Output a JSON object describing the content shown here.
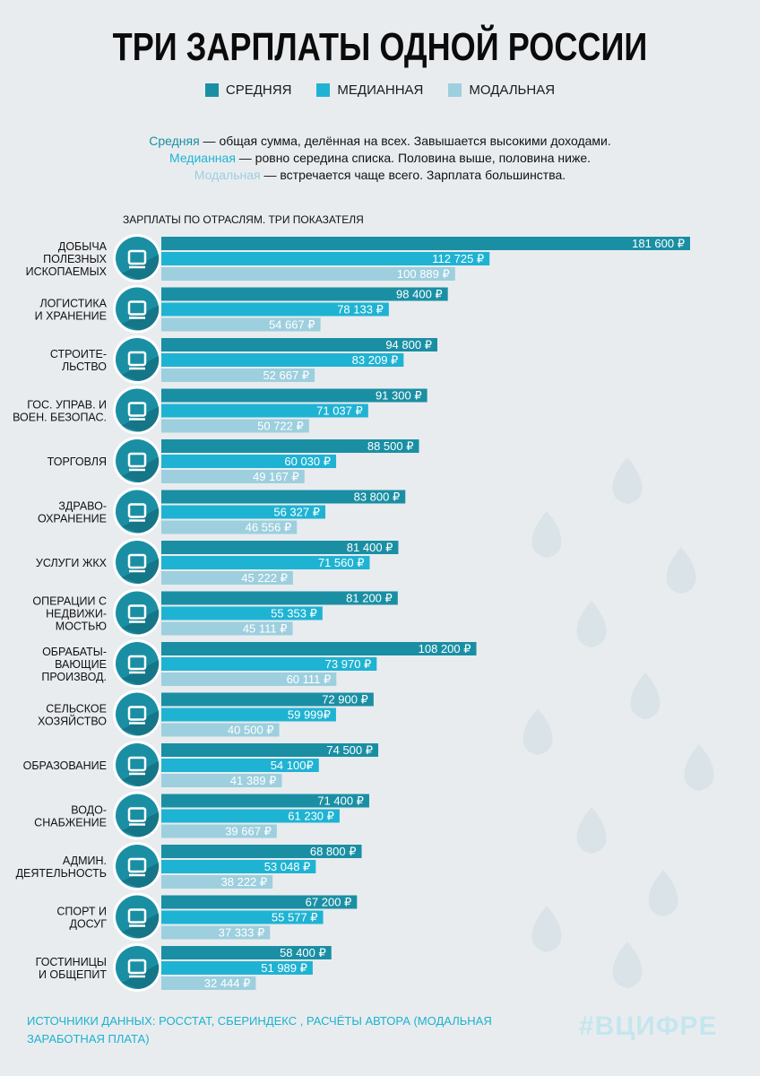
{
  "title": "ТРИ ЗАРПЛАТЫ ОДНОЙ РОССИИ",
  "legend": [
    {
      "label": "СРЕДНЯЯ",
      "color": "#1a8fa4"
    },
    {
      "label": "МЕДИАННАЯ",
      "color": "#1fb3d3"
    },
    {
      "label": "МОДАЛЬНАЯ",
      "color": "#9dcfde"
    }
  ],
  "definitions": [
    {
      "term": "Средняя",
      "text": " — общая сумма, делённая на всех. Завышается высокими доходами.",
      "color": "#1a8fa4"
    },
    {
      "term": "Медианная",
      "text": " — ровно середина списка. Половина выше, половина ниже.",
      "color": "#1fb3d3"
    },
    {
      "term": "Модальная",
      "text": " — встречается чаще всего. Зарплата большинства.",
      "color": "#9dcfde"
    }
  ],
  "subtitle": "ЗАРПЛАТЫ ПО ОТРАСЛЯМ. ТРИ ПОКАЗАТЕЛЯ",
  "source": "ИСТОЧНИКИ ДАННЫХ: РОССТАТ, СБЕРИНДЕКС , РАСЧЁТЫ АВТОРА (МОДАЛЬНАЯ ЗАРАБОТНАЯ ПЛАТА)",
  "brand": "#ВЦИФРЕ",
  "chart_data": {
    "type": "bar",
    "orientation": "horizontal",
    "series": [
      {
        "name": "СРЕДНЯЯ",
        "color": "#1a8fa4",
        "values": [
          181600,
          98400,
          94800,
          91300,
          88500,
          83800,
          81400,
          81200,
          108200,
          72900,
          74500,
          71400,
          68800,
          67200,
          58400
        ],
        "labels": [
          "181 600 ₽",
          "98 400 ₽",
          "94 800 ₽",
          "91 300 ₽",
          "88 500 ₽",
          "83 800 ₽",
          "81 400 ₽",
          "81 200 ₽",
          "108 200 ₽",
          "72 900 ₽",
          "74 500 ₽",
          "71 400 ₽",
          "68 800 ₽",
          "67 200 ₽",
          "58 400 ₽"
        ]
      },
      {
        "name": "МЕДИАННАЯ",
        "color": "#1fb3d3",
        "values": [
          112725,
          78133,
          83209,
          71037,
          60030,
          56327,
          71560,
          55353,
          73970,
          59999,
          54100,
          61230,
          53048,
          55577,
          51989
        ],
        "labels": [
          "112 725 ₽",
          "78 133 ₽",
          "83 209 ₽",
          "71 037 ₽",
          "60 030 ₽",
          "56 327 ₽",
          "71 560 ₽",
          "55 353 ₽",
          "73 970 ₽",
          "59 999₽",
          "54 100₽",
          "61 230 ₽",
          "53 048 ₽",
          "55 577 ₽",
          "51 989 ₽"
        ]
      },
      {
        "name": "МОДАЛЬНАЯ",
        "color": "#9dcfde",
        "values": [
          100889,
          54667,
          52667,
          50722,
          49167,
          46556,
          45222,
          45111,
          60111,
          40500,
          41389,
          39667,
          38222,
          37333,
          32444
        ],
        "labels": [
          "100 889 ₽",
          "54 667 ₽",
          "52 667 ₽",
          "50 722 ₽",
          "49 167 ₽",
          "46 556 ₽",
          "45 222 ₽",
          "45 111 ₽",
          "60 111 ₽",
          "40 500 ₽",
          "41 389 ₽",
          "39 667 ₽",
          "38 222 ₽",
          "37 333 ₽",
          "32 444 ₽"
        ]
      }
    ],
    "categories": [
      {
        "lines": [
          "ДОБЫЧА",
          "ПОЛЕЗНЫХ",
          "ИСКОПАЕМЫХ"
        ],
        "icon": "pickaxe-shovel-icon"
      },
      {
        "lines": [
          "ЛОГИСТИКА",
          "И ХРАНЕНИЕ"
        ],
        "icon": "truck-icon"
      },
      {
        "lines": [
          "СТРОИТЕ-",
          "ЛЬСТВО"
        ],
        "icon": "crane-icon"
      },
      {
        "lines": [
          "ГОС. УПРАВ. И",
          "ВОЕН. БЕЗОПАС."
        ],
        "icon": "kremlin-tower-icon"
      },
      {
        "lines": [
          "ТОРГОВЛЯ"
        ],
        "icon": "shopping-cart-icon"
      },
      {
        "lines": [
          "ЗДРАВО-",
          "ОХРАНЕНИЕ"
        ],
        "icon": "medical-cross-icon"
      },
      {
        "lines": [
          "УСЛУГИ ЖКХ"
        ],
        "icon": "house-gear-icon"
      },
      {
        "lines": [
          "ОПЕРАЦИИ С",
          "НЕДВИЖИ-",
          "МОСТЬЮ"
        ],
        "icon": "house-sold-icon"
      },
      {
        "lines": [
          "ОБРАБАТЫ-",
          "ВАЮЩИЕ",
          "ПРОИЗВОД."
        ],
        "icon": "factory-icon"
      },
      {
        "lines": [
          "СЕЛЬСКОЕ",
          "ХОЗЯЙСТВО"
        ],
        "icon": "tractor-icon"
      },
      {
        "lines": [
          "ОБРАЗОВАНИЕ"
        ],
        "icon": "graduation-cap-icon"
      },
      {
        "lines": [
          "ВОДО-",
          "СНАБЖЕНИЕ"
        ],
        "icon": "water-tap-icon"
      },
      {
        "lines": [
          "АДМИН.",
          "ДЕЯТЕЛЬНОСТЬ"
        ],
        "icon": "office-desk-icon"
      },
      {
        "lines": [
          "СПОРТ И",
          "ДОСУГ"
        ],
        "icon": "sports-balls-icon"
      },
      {
        "lines": [
          "ГОСТИНИЦЫ",
          "И ОБЩЕПИТ"
        ],
        "icon": "service-bell-icon"
      }
    ]
  }
}
